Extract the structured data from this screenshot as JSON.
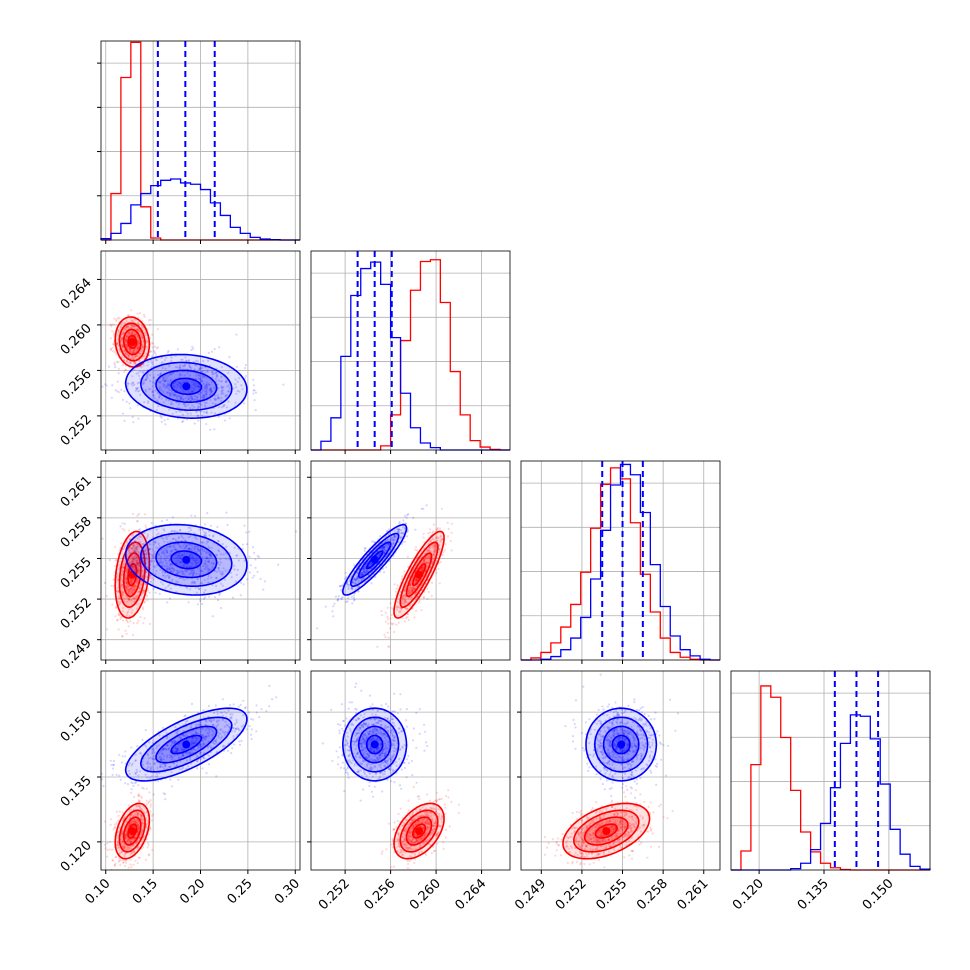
{
  "chart_data": {
    "type": "corner",
    "grid": true,
    "colors": {
      "red": "#ff0000",
      "blue": "#0000ff"
    },
    "parameters": [
      {
        "range": [
          0.095,
          0.305
        ],
        "ticks": [
          "0.10",
          "0.15",
          "0.20",
          "0.25",
          "0.30"
        ],
        "tick_values": [
          0.1,
          0.15,
          0.2,
          0.25,
          0.3
        ]
      },
      {
        "range": [
          0.249,
          0.2665
        ],
        "ticks": [
          "0.252",
          "0.256",
          "0.260",
          "0.264"
        ],
        "tick_values": [
          0.252,
          0.256,
          0.26,
          0.264
        ]
      },
      {
        "range": [
          0.2475,
          0.2622
        ],
        "ticks": [
          "0.249",
          "0.252",
          "0.255",
          "0.258",
          "0.261"
        ],
        "tick_values": [
          0.249,
          0.252,
          0.255,
          0.258,
          0.261
        ]
      },
      {
        "range": [
          0.1135,
          0.1595
        ],
        "ticks": [
          "0.120",
          "0.135",
          "0.150"
        ],
        "tick_values": [
          0.12,
          0.135,
          0.15
        ]
      }
    ],
    "series": [
      {
        "color": "red",
        "mean": [
          0.128,
          0.2585,
          0.2538,
          0.1225
        ],
        "std": [
          0.009,
          0.0011,
          0.0016,
          0.0032
        ],
        "corr": [
          [
            1,
            -0.1,
            0.25,
            0.4
          ],
          [
            -0.1,
            1,
            0.85,
            0.45
          ],
          [
            0.25,
            0.85,
            1,
            0.45
          ],
          [
            0.4,
            0.45,
            0.45,
            1
          ]
        ]
      },
      {
        "color": "blue",
        "mean": [
          0.185,
          0.2546,
          0.2549,
          0.1425
        ],
        "std": [
          0.032,
          0.0014,
          0.0013,
          0.0042
        ],
        "corr": [
          [
            1,
            -0.1,
            -0.15,
            0.7
          ],
          [
            -0.1,
            1,
            0.9,
            0.0
          ],
          [
            -0.15,
            0.9,
            1,
            0.0
          ],
          [
            0.7,
            0.0,
            0.0,
            1
          ]
        ]
      }
    ],
    "quantile_lines": {
      "color": "blue",
      "values": [
        [
          0.155,
          0.184,
          0.215
        ],
        [
          0.2531,
          0.2546,
          0.2561
        ],
        [
          0.2535,
          0.255,
          0.2565
        ],
        [
          0.1375,
          0.1425,
          0.1475
        ]
      ]
    },
    "histograms": [
      {
        "edges": [
          0.095,
          0.1055,
          0.116,
          0.1265,
          0.137,
          0.1475,
          0.158,
          0.1685,
          0.179,
          0.1895,
          0.2,
          0.2105,
          0.221,
          0.2315,
          0.242,
          0.2525,
          0.263,
          0.2735,
          0.284,
          0.2945,
          0.305
        ],
        "ylim": [
          0,
          3000
        ],
        "red": [
          0,
          700,
          2450,
          2980,
          500,
          30,
          0,
          0,
          0,
          0,
          0,
          0,
          0,
          0,
          0,
          0,
          0,
          0,
          0,
          0
        ],
        "blue": [
          20,
          100,
          250,
          530,
          700,
          820,
          900,
          920,
          860,
          840,
          760,
          560,
          370,
          190,
          100,
          40,
          15,
          5,
          0,
          0
        ]
      },
      {
        "edges": [
          0.249,
          0.249875,
          0.25075,
          0.251625,
          0.2525,
          0.253375,
          0.25425,
          0.255125,
          0.256,
          0.256875,
          0.25775,
          0.258625,
          0.2595,
          0.260375,
          0.26125,
          0.262125,
          0.263,
          0.263875,
          0.26475,
          0.265625,
          0.2665
        ],
        "ylim": [
          0,
          3400
        ],
        "red": [
          0,
          0,
          0,
          0,
          0,
          0,
          0,
          70,
          600,
          1870,
          2730,
          3220,
          3250,
          2520,
          1340,
          600,
          160,
          50,
          10,
          0
        ],
        "blue": [
          0,
          150,
          550,
          1600,
          2640,
          3100,
          3210,
          2830,
          1920,
          970,
          380,
          120,
          40,
          0,
          0,
          0,
          0,
          0,
          0,
          0
        ]
      },
      {
        "edges": [
          0.2475,
          0.248235,
          0.24897,
          0.249705,
          0.25044,
          0.251175,
          0.25191,
          0.252645,
          0.25338,
          0.254115,
          0.25485,
          0.255585,
          0.25632,
          0.257055,
          0.25779,
          0.258525,
          0.25926,
          0.259995,
          0.26073,
          0.261465,
          0.2622
        ],
        "ylim": [
          0,
          2900
        ],
        "red": [
          0,
          30,
          110,
          250,
          480,
          810,
          1280,
          1920,
          2560,
          2800,
          2640,
          2000,
          1250,
          700,
          320,
          110,
          40,
          10,
          0,
          0
        ],
        "blue": [
          0,
          0,
          10,
          50,
          150,
          320,
          620,
          1180,
          1890,
          2550,
          2850,
          2700,
          2150,
          1390,
          780,
          350,
          150,
          60,
          10,
          0
        ]
      },
      {
        "edges": [
          0.1135,
          0.1158,
          0.1181,
          0.1204,
          0.1227,
          0.125,
          0.1273,
          0.1296,
          0.1319,
          0.1342,
          0.1365,
          0.1388,
          0.1411,
          0.1434,
          0.1457,
          0.148,
          0.1503,
          0.1526,
          0.1549,
          0.1572,
          0.1595
        ],
        "ylim": [
          0,
          4400
        ],
        "red": [
          0,
          420,
          2330,
          4070,
          3820,
          2930,
          1760,
          840,
          400,
          150,
          50,
          10,
          0,
          0,
          0,
          0,
          0,
          0,
          0,
          0
        ],
        "blue": [
          0,
          0,
          0,
          0,
          0,
          0,
          30,
          150,
          450,
          1030,
          1820,
          2800,
          3430,
          3400,
          2900,
          1900,
          900,
          350,
          80,
          20
        ]
      }
    ]
  }
}
